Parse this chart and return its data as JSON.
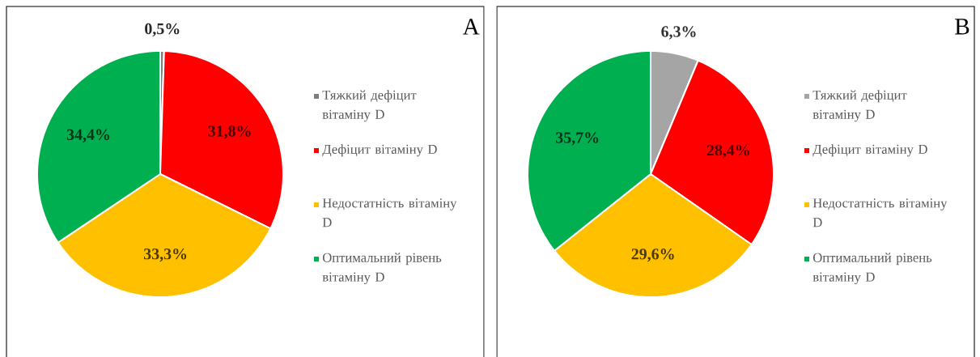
{
  "chart_data": [
    {
      "type": "pie",
      "title": "A",
      "categories": [
        "Тяжкий дефіцит вітаміну D",
        "Дефіцит вітаміну D",
        "Недостатність вітаміну D",
        "Оптимальний рівень вітаміну D"
      ],
      "values": [
        0.5,
        31.8,
        33.3,
        34.4
      ],
      "colors": [
        "#7f7f7f",
        "#ff0000",
        "#ffc000",
        "#00b050"
      ],
      "value_labels": [
        "0,5%",
        "31,8%",
        "33,3%",
        "34,4%"
      ],
      "legend": "right"
    },
    {
      "type": "pie",
      "title": "B",
      "categories": [
        "Тяжкий дефіцит вітаміну D",
        "Дефіцит вітаміну D",
        "Недостатність вітаміну D",
        "Оптимальний рівень вітаміну D"
      ],
      "values": [
        6.3,
        28.4,
        29.6,
        35.7
      ],
      "colors": [
        "#a5a5a5",
        "#ff0000",
        "#ffc000",
        "#00b050"
      ],
      "value_labels": [
        "6,3%",
        "28,4%",
        "29,6%",
        "35,7%"
      ],
      "legend": "right"
    }
  ]
}
